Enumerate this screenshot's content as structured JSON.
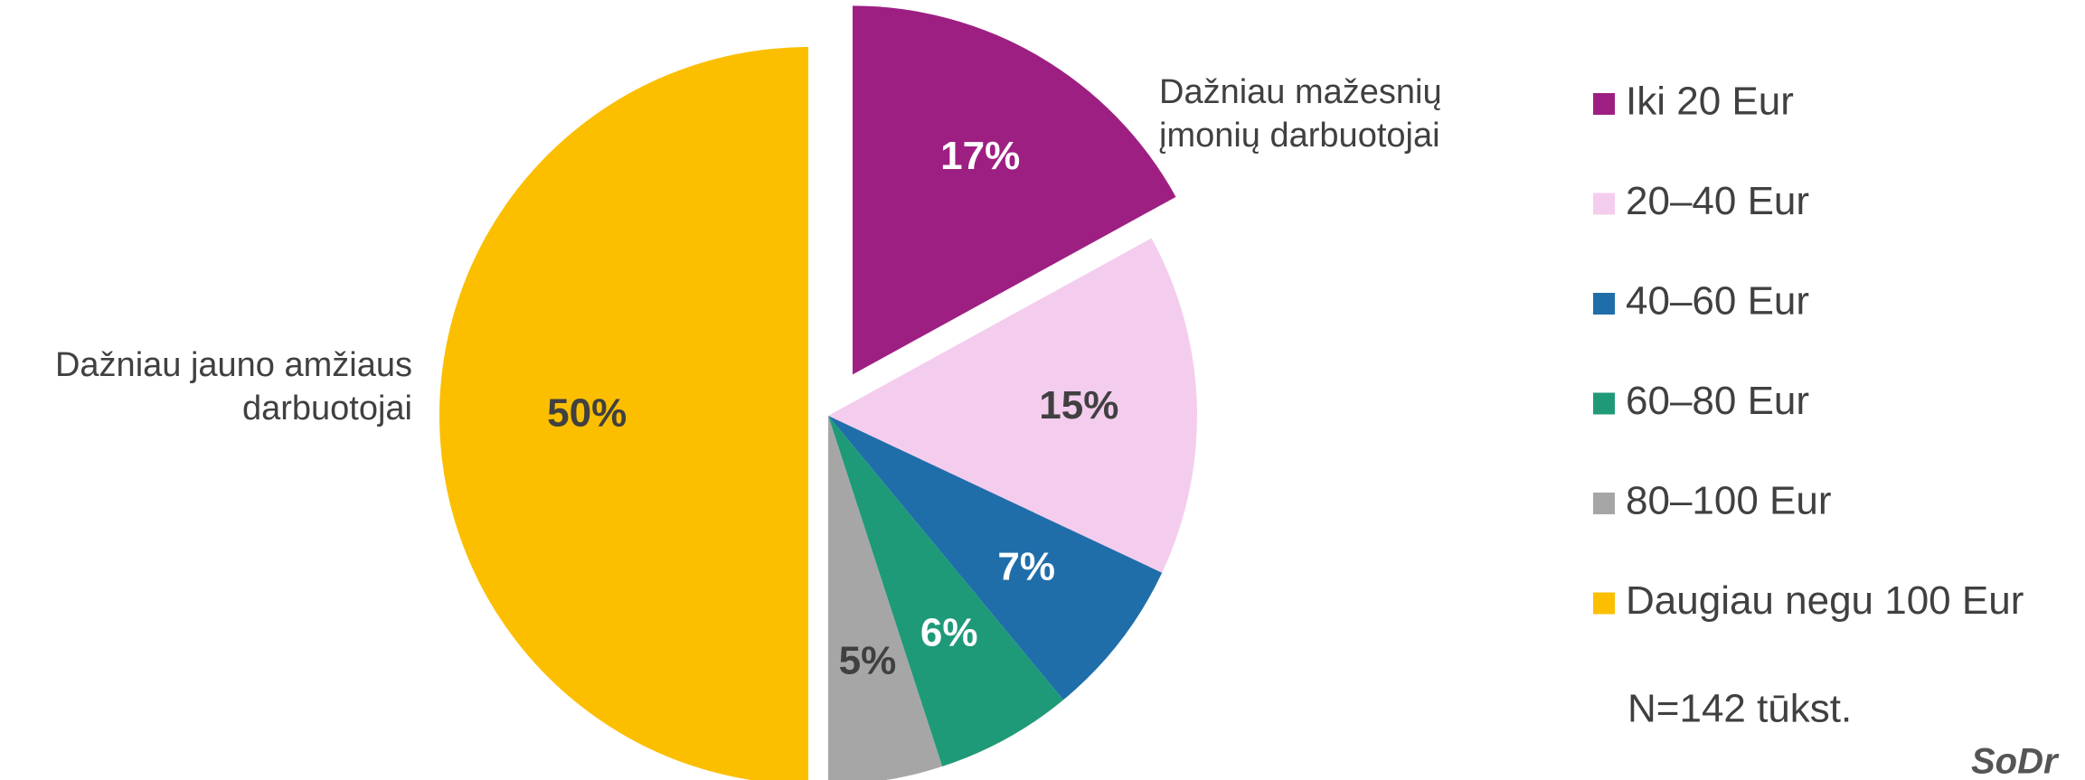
{
  "chart_data": {
    "type": "pie",
    "categories": [
      "Iki 20 Eur",
      "20–40 Eur",
      "40–60 Eur",
      "60–80 Eur",
      "80–100 Eur",
      "Daugiau negu 100 Eur"
    ],
    "values": [
      17,
      15,
      7,
      6,
      5,
      50
    ],
    "value_labels": [
      "17%",
      "15%",
      "7%",
      "6%",
      "5%",
      "50%"
    ],
    "colors": [
      "#9e1f82",
      "#f4cdee",
      "#1f6eaa",
      "#1f9a78",
      "#a6a6a6",
      "#fbbf00"
    ],
    "annotations": [
      {
        "text": [
          "Dažniau mažesnių",
          "įmonių darbuotojai"
        ],
        "slice": 0
      },
      {
        "text": [
          "Dažniau jauno amžiaus",
          "darbuotojai"
        ],
        "slice": 5
      }
    ],
    "note": "N=142 tūkst.",
    "logo": "SoDr",
    "legend": "right"
  }
}
